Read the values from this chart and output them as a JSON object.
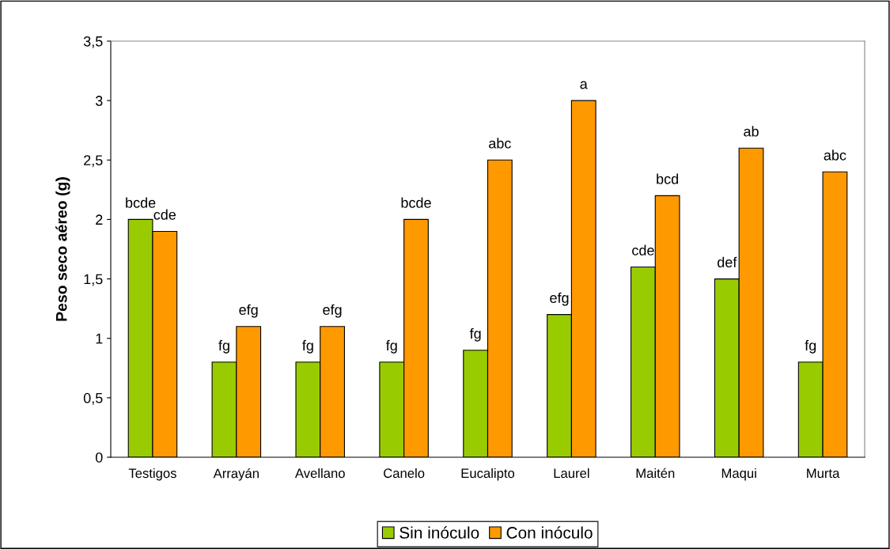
{
  "chart_data": {
    "type": "bar",
    "ylabel": "Peso seco aéreo (g)",
    "categories": [
      "Testigos",
      "Arrayán",
      "Avellano",
      "Canelo",
      "Eucalipto",
      "Laurel",
      "Maitén",
      "Maqui",
      "Murta"
    ],
    "series": [
      {
        "name": "Sin inóculo",
        "color": "#99cc00",
        "values": [
          2.0,
          0.8,
          0.8,
          0.8,
          0.9,
          1.2,
          1.6,
          1.5,
          0.8
        ],
        "value_labels": [
          "bcde",
          "fg",
          "fg",
          "fg",
          "fg",
          "efg",
          "cde",
          "def",
          "fg"
        ]
      },
      {
        "name": "Con inóculo",
        "color": "#ff9900",
        "values": [
          1.9,
          1.1,
          1.1,
          2.0,
          2.5,
          3.0,
          2.2,
          2.6,
          2.4
        ],
        "value_labels": [
          "cde",
          "efg",
          "efg",
          "bcde",
          "abc",
          "a",
          "bcd",
          "ab",
          "abc"
        ]
      }
    ],
    "ylim": [
      0,
      3.5
    ],
    "yticks": [
      0,
      {
        "value": 0.5,
        "label": "0,5"
      },
      1,
      {
        "value": 1.5,
        "label": "1,5"
      },
      2,
      {
        "value": 2.5,
        "label": "2,5"
      },
      3,
      {
        "value": 3.5,
        "label": "3,5"
      }
    ],
    "grid": false,
    "legend": "bottom"
  }
}
